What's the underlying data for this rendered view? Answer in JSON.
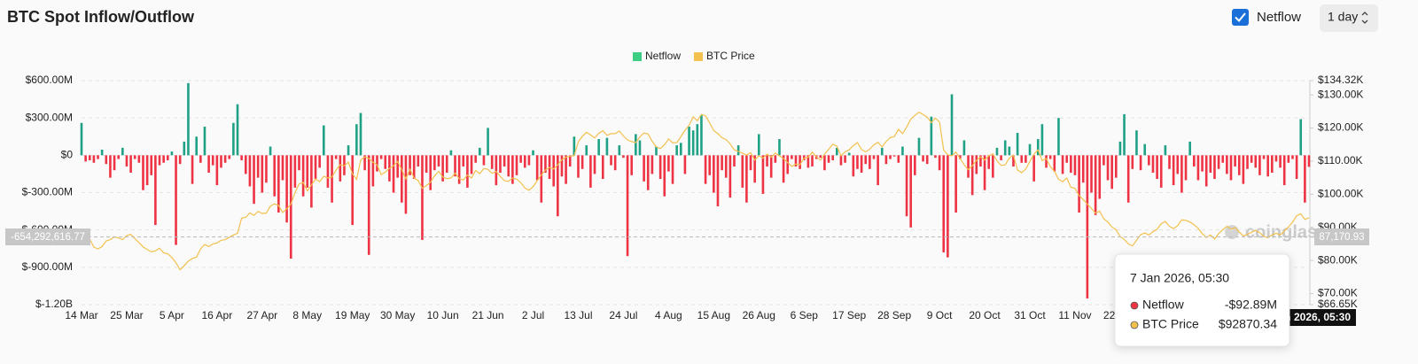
{
  "header": {
    "title": "BTC Spot Inflow/Outflow",
    "toggle": "Netflow",
    "interval": "1 day"
  },
  "chart_data": {
    "type": "bar-line",
    "watermark": "coinglass",
    "categories": [
      "14 Mar",
      null,
      null,
      null,
      null,
      null,
      null,
      null,
      null,
      null,
      null,
      "25 Mar",
      null,
      null,
      null,
      null,
      null,
      null,
      null,
      null,
      null,
      null,
      "5 Apr",
      null,
      null,
      null,
      null,
      null,
      null,
      null,
      null,
      null,
      null,
      "16 Apr",
      null,
      null,
      null,
      null,
      null,
      null,
      null,
      null,
      null,
      null,
      "27 Apr",
      null,
      null,
      null,
      null,
      null,
      null,
      null,
      null,
      null,
      null,
      "8 May",
      null,
      null,
      null,
      null,
      null,
      null,
      null,
      null,
      null,
      null,
      "19 May",
      null,
      null,
      null,
      null,
      null,
      null,
      null,
      null,
      null,
      null,
      "30 May",
      null,
      null,
      null,
      null,
      null,
      null,
      null,
      null,
      null,
      null,
      "10 Jun",
      null,
      null,
      null,
      null,
      null,
      null,
      null,
      null,
      null,
      null,
      "21 Jun",
      null,
      null,
      null,
      null,
      null,
      null,
      null,
      null,
      null,
      null,
      "2 Jul",
      null,
      null,
      null,
      null,
      null,
      null,
      null,
      null,
      null,
      null,
      "13 Jul",
      null,
      null,
      null,
      null,
      null,
      null,
      null,
      null,
      null,
      null,
      "24 Jul",
      null,
      null,
      null,
      null,
      null,
      null,
      null,
      null,
      null,
      null,
      "4 Aug",
      null,
      null,
      null,
      null,
      null,
      null,
      null,
      null,
      null,
      null,
      "15 Aug",
      null,
      null,
      null,
      null,
      null,
      null,
      null,
      null,
      null,
      null,
      "26 Aug",
      null,
      null,
      null,
      null,
      null,
      null,
      null,
      null,
      null,
      null,
      "6 Sep",
      null,
      null,
      null,
      null,
      null,
      null,
      null,
      null,
      null,
      null,
      "17 Sep",
      null,
      null,
      null,
      null,
      null,
      null,
      null,
      null,
      null,
      null,
      "28 Sep",
      null,
      null,
      null,
      null,
      null,
      null,
      null,
      null,
      null,
      null,
      "9 Oct",
      null,
      null,
      null,
      null,
      null,
      null,
      null,
      null,
      null,
      null,
      "20 Oct",
      null,
      null,
      null,
      null,
      null,
      null,
      null,
      null,
      null,
      null,
      "31 Oct",
      null,
      null,
      null,
      null,
      null,
      null,
      null,
      null,
      null,
      null,
      "11 Nov",
      null,
      null,
      null,
      null,
      null,
      null,
      null,
      null,
      null,
      null,
      "22 Nov",
      null,
      null,
      null,
      null,
      null,
      null,
      null,
      null,
      null,
      null,
      null,
      null,
      null,
      null,
      null,
      null,
      null,
      null,
      null,
      null,
      null,
      null,
      null,
      null,
      null,
      null,
      null,
      null,
      null,
      null,
      null,
      null,
      null,
      null,
      null,
      null,
      null,
      null,
      null,
      null,
      null,
      null,
      null,
      null,
      null,
      null
    ],
    "series": [
      {
        "name": "Netflow",
        "color": "#3ccf83",
        "positive_color": "#1fa185",
        "negative_color": "#ee3344",
        "values": [
          260,
          -50,
          -40,
          -60,
          -30,
          45,
          -70,
          -180,
          -120,
          -30,
          60,
          -90,
          -140,
          -30,
          -60,
          -280,
          -240,
          -160,
          -560,
          -80,
          -60,
          -40,
          30,
          -720,
          -70,
          110,
          580,
          -230,
          150,
          -60,
          230,
          -140,
          -80,
          -240,
          -100,
          -60,
          -30,
          260,
          410,
          -40,
          -150,
          -250,
          -390,
          -180,
          -300,
          -220,
          70,
          -330,
          -460,
          -200,
          -540,
          -830,
          -260,
          -120,
          -330,
          -260,
          -420,
          -190,
          -100,
          240,
          -260,
          -380,
          -30,
          -210,
          -160,
          80,
          -560,
          250,
          340,
          -120,
          -800,
          -250,
          -130,
          -30,
          -110,
          -210,
          -300,
          -180,
          -380,
          -470,
          -160,
          -190,
          -90,
          -680,
          -140,
          -280,
          -120,
          -90,
          -210,
          -140,
          40,
          -170,
          -230,
          -90,
          -260,
          -150,
          -60,
          60,
          -80,
          220,
          -110,
          -240,
          -140,
          -90,
          -170,
          -230,
          -160,
          -60,
          -100,
          -80,
          40,
          -200,
          -380,
          -140,
          -190,
          -250,
          -490,
          -170,
          -230,
          -90,
          150,
          -180,
          -110,
          80,
          -260,
          -150,
          130,
          -190,
          140,
          -80,
          -120,
          80,
          -20,
          -810,
          -160,
          170,
          120,
          -210,
          -280,
          -150,
          70,
          -190,
          -330,
          -130,
          -230,
          80,
          100,
          -150,
          230,
          200,
          250,
          320,
          -230,
          -160,
          -300,
          -410,
          -120,
          -180,
          -340,
          -90,
          80,
          -260,
          -380,
          -120,
          -220,
          170,
          -310,
          -90,
          -180,
          -60,
          130,
          -220,
          -150,
          -30,
          -90,
          -110,
          -40,
          -100,
          -90,
          -30,
          -20,
          -120,
          -60,
          -40,
          60,
          -80,
          -60,
          20,
          -170,
          -110,
          -140,
          -70,
          -110,
          -30,
          -240,
          60,
          -70,
          -30,
          -10,
          -60,
          70,
          -490,
          -580,
          -160,
          140,
          -50,
          -70,
          310,
          -20,
          -120,
          -780,
          -820,
          490,
          -460,
          -30,
          120,
          -180,
          -320,
          -150,
          -90,
          -280,
          -110,
          -180,
          60,
          -40,
          120,
          70,
          -90,
          180,
          -60,
          -60,
          90,
          -210,
          130,
          250,
          -100,
          -30,
          -130,
          300,
          -150,
          -60,
          -140,
          -160,
          -460,
          -220,
          -1150,
          -300,
          -480,
          -350,
          -80,
          -200,
          -270,
          -180,
          110,
          330,
          -380,
          -110,
          200,
          -120,
          90,
          -80,
          -140,
          -190,
          -260,
          80,
          -110,
          -240,
          -150,
          -300,
          -200,
          110,
          -90,
          -200,
          -130,
          -250,
          -140,
          -190,
          -110,
          -60,
          -150,
          -200,
          -90,
          -160,
          -230,
          -110,
          -60,
          -100,
          -160,
          -30,
          -170,
          -140,
          -50,
          -100,
          -240,
          -60,
          -30,
          -190,
          290,
          -380,
          -92.89
        ]
      },
      {
        "name": "BTC Price",
        "color": "#f2c14e",
        "axis": "y2",
        "values": [
          86900,
          87200,
          86500,
          84000,
          83500,
          84200,
          85900,
          86300,
          87100,
          86800,
          86300,
          87500,
          87900,
          86600,
          85400,
          84100,
          83300,
          82600,
          82900,
          83700,
          82300,
          82000,
          80900,
          79300,
          77200,
          78400,
          79800,
          80600,
          81000,
          83500,
          84800,
          84200,
          85000,
          85300,
          86100,
          86300,
          87000,
          87700,
          88200,
          92800,
          93000,
          94400,
          93600,
          94800,
          94200,
          94300,
          96400,
          97100,
          96600,
          94500,
          95600,
          97000,
          100500,
          103100,
          103600,
          101000,
          102800,
          104600,
          103800,
          105400,
          104900,
          105200,
          107300,
          108900,
          108600,
          109700,
          106100,
          104500,
          110300,
          111300,
          110800,
          109600,
          108900,
          105900,
          106700,
          107800,
          108600,
          109900,
          107400,
          104600,
          107600,
          104900,
          104100,
          101800,
          102600,
          103600,
          105600,
          106900,
          105200,
          104700,
          104900,
          106400,
          104700,
          104300,
          105800,
          104900,
          107200,
          106200,
          107800,
          107500,
          106300,
          106900,
          105400,
          104100,
          103900,
          104900,
          104600,
          103500,
          101900,
          101200,
          102300,
          104100,
          105800,
          107300,
          108100,
          107600,
          108900,
          110400,
          111200,
          111500,
          111600,
          115800,
          117500,
          118700,
          117900,
          117000,
          118400,
          119200,
          117800,
          118300,
          118300,
          119100,
          117600,
          116400,
          115900,
          115600,
          117300,
          118500,
          118200,
          116000,
          114300,
          113800,
          114900,
          116700,
          115500,
          115600,
          117400,
          119300,
          120800,
          123400,
          122200,
          124100,
          123700,
          121600,
          119200,
          118300,
          117100,
          116500,
          115200,
          113400,
          112900,
          112400,
          111800,
          112600,
          110300,
          111600,
          110900,
          112100,
          111200,
          112400,
          111600,
          110800,
          109600,
          108400,
          109100,
          108900,
          110900,
          111200,
          112700,
          111300,
          110300,
          112100,
          113600,
          115100,
          114500,
          111600,
          112800,
          113400,
          114700,
          115600,
          113500,
          112800,
          113600,
          114900,
          115700,
          114300,
          115900,
          117100,
          117400,
          119600,
          118300,
          120300,
          122700,
          123800,
          124800,
          124100,
          123300,
          121600,
          123000,
          121800,
          113400,
          111900,
          111600,
          112700,
          110800,
          108900,
          107400,
          108600,
          110200,
          111300,
          110300,
          111600,
          112200,
          110100,
          108700,
          108900,
          110900,
          111800,
          107300,
          106500,
          107600,
          109900,
          112100,
          113400,
          110200,
          110800,
          108300,
          106900,
          104500,
          103800,
          104900,
          102100,
          101800,
          99600,
          98400,
          97000,
          95700,
          94300,
          94900,
          92600,
          91600,
          90100,
          89300,
          87200,
          86400,
          85000,
          84400,
          86100,
          87800,
          88300,
          87700,
          88700,
          89400,
          91100,
          91800,
          90300,
          89600,
          90500,
          92300,
          92100,
          91600,
          90800,
          89700,
          88100,
          86900,
          87700,
          86500,
          88100,
          89300,
          90300,
          89500,
          89900,
          88600,
          87400,
          87900,
          88500,
          89100,
          88400,
          87300,
          86900,
          87700,
          88200,
          87700,
          88900,
          90100,
          91600,
          93500,
          94100,
          92400,
          92870.34
        ]
      }
    ],
    "ylim": [
      -1200,
      600
    ],
    "yticks": [
      {
        "value": 600,
        "label": "$600.00M"
      },
      {
        "value": 300,
        "label": "$300.00M"
      },
      {
        "value": 0,
        "label": "$0"
      },
      {
        "value": -300,
        "label": "$-300.00M"
      },
      {
        "value": -600,
        "label": "$-600.00M"
      },
      {
        "value": -900,
        "label": "$-900.00M"
      },
      {
        "value": -1200,
        "label": "$-1.20B"
      }
    ],
    "y2lim": [
      66650,
      134320
    ],
    "y2ticks": [
      {
        "value": 134320,
        "label": "$134.32K"
      },
      {
        "value": 130000,
        "label": "$130.00K"
      },
      {
        "value": 120000,
        "label": "$120.00K"
      },
      {
        "value": 110000,
        "label": "$110.00K"
      },
      {
        "value": 100000,
        "label": "$100.00K"
      },
      {
        "value": 90000,
        "label": "$90.00K"
      },
      {
        "value": 80000,
        "label": "$80.00K"
      },
      {
        "value": 70000,
        "label": "$70.00K"
      },
      {
        "value": 66650,
        "label": "$66.65K"
      }
    ],
    "grid": true,
    "legend": "top",
    "crosshair": {
      "y_label": "-654,292,616.77",
      "y2_label": "87,170.93"
    },
    "tooltip": {
      "title": "7 Jan 2026, 05:30",
      "values": [
        "-$92.89M",
        "$92870.34"
      ]
    }
  }
}
